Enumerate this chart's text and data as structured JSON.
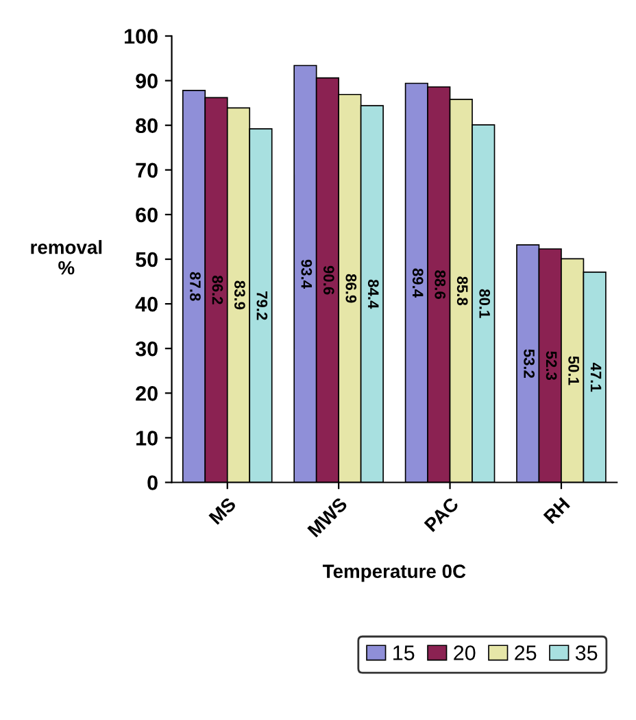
{
  "chart_data": {
    "type": "bar",
    "categories": [
      "MS",
      "MWS",
      "PAC",
      "RH"
    ],
    "series": [
      {
        "name": "15",
        "color": "#8f8fd8",
        "values": [
          87.8,
          93.4,
          89.4,
          53.2
        ]
      },
      {
        "name": "20",
        "color": "#8b2252",
        "values": [
          86.2,
          90.6,
          88.6,
          52.3
        ]
      },
      {
        "name": "25",
        "color": "#e6e6a8",
        "values": [
          83.9,
          86.9,
          85.8,
          50.1
        ]
      },
      {
        "name": "35",
        "color": "#a8e0e0",
        "values": [
          79.2,
          84.4,
          80.1,
          47.1
        ]
      }
    ],
    "ylabel": "removal\n%",
    "xlabel": "Temperature 0C",
    "ylim": [
      0,
      100
    ],
    "yticks": [
      0,
      10,
      20,
      30,
      40,
      50,
      60,
      70,
      80,
      90,
      100
    ],
    "data_labels": true,
    "legend": "bottom right",
    "grid": false
  }
}
